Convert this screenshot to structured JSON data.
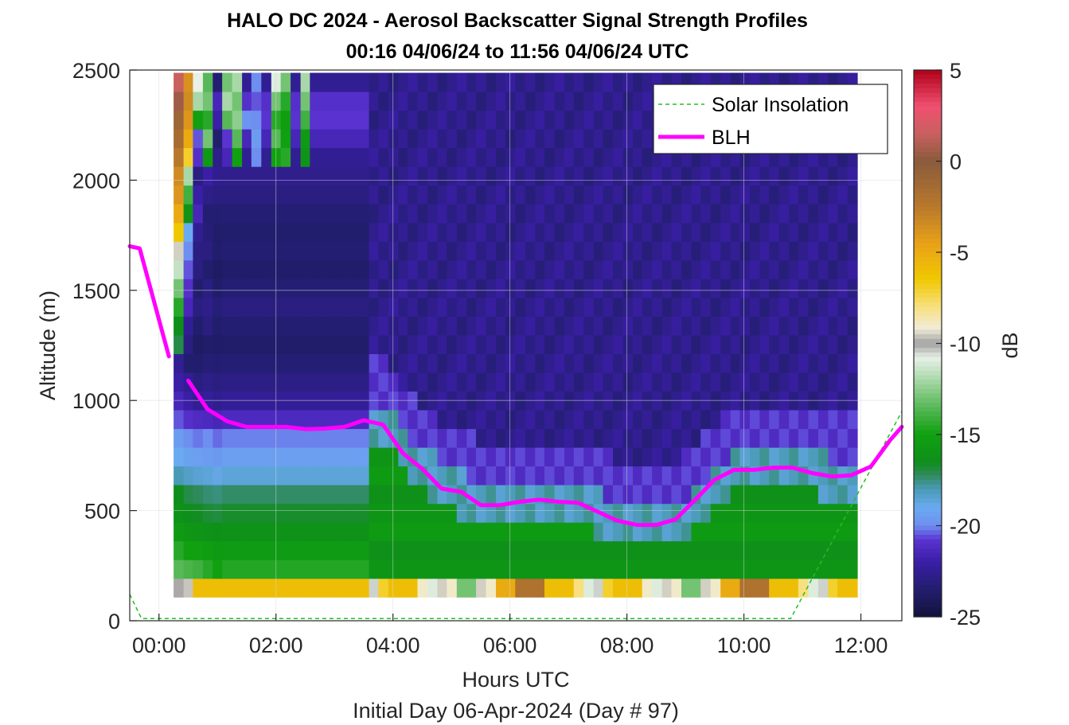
{
  "chart_data": {
    "type": "heatmap",
    "title": "HALO DC 2024 - Aerosol Backscatter Signal Strength Profiles",
    "subtitle": "00:16 04/06/24 to 11:56 04/06/24  UTC",
    "xlabel": "Hours UTC",
    "footer": "Initial Day 06-Apr-2024 (Day # 97)",
    "ylabel": "Altitude (m)",
    "colorbar_label": "dB",
    "xlim_hours": [
      -0.5,
      12.7
    ],
    "ylim": [
      0,
      2500
    ],
    "x_ticks": [
      {
        "hour": 0,
        "label": "00:00"
      },
      {
        "hour": 2,
        "label": "02:00"
      },
      {
        "hour": 4,
        "label": "04:00"
      },
      {
        "hour": 6,
        "label": "06:00"
      },
      {
        "hour": 8,
        "label": "08:00"
      },
      {
        "hour": 10,
        "label": "10:00"
      },
      {
        "hour": 12,
        "label": "12:00"
      }
    ],
    "y_ticks": [
      {
        "value": 0,
        "label": "0"
      },
      {
        "value": 500,
        "label": "500"
      },
      {
        "value": 1000,
        "label": "1000"
      },
      {
        "value": 1500,
        "label": "1500"
      },
      {
        "value": 2000,
        "label": "2000"
      },
      {
        "value": 2500,
        "label": "2500"
      }
    ],
    "colorbar_range": [
      -25,
      5
    ],
    "colorbar_ticks": [
      {
        "value": 5,
        "label": "5"
      },
      {
        "value": 0,
        "label": "0"
      },
      {
        "value": -5,
        "label": "-5"
      },
      {
        "value": -10,
        "label": "-10"
      },
      {
        "value": -15,
        "label": "-15"
      },
      {
        "value": -20,
        "label": "-20"
      },
      {
        "value": -25,
        "label": "-25"
      }
    ],
    "colormap_stops": [
      {
        "value": -25,
        "color": "#14123c"
      },
      {
        "value": -23.5,
        "color": "#221e6e"
      },
      {
        "value": -22,
        "color": "#3a1ea6"
      },
      {
        "value": -20.8,
        "color": "#5a32d0"
      },
      {
        "value": -20,
        "color": "#6e8ef0"
      },
      {
        "value": -19,
        "color": "#6aaaf0"
      },
      {
        "value": -18,
        "color": "#4a9ab6"
      },
      {
        "value": -17.2,
        "color": "#2e8a5a"
      },
      {
        "value": -16.5,
        "color": "#0e8e1a"
      },
      {
        "value": -15,
        "color": "#10a010"
      },
      {
        "value": -13.5,
        "color": "#58b858"
      },
      {
        "value": -12,
        "color": "#a8d8a8"
      },
      {
        "value": -10.8,
        "color": "#e8f0e8"
      },
      {
        "value": -10,
        "color": "#a0a0a0"
      },
      {
        "value": -9.2,
        "color": "#f0ecd8"
      },
      {
        "value": -8,
        "color": "#f8e080"
      },
      {
        "value": -6.5,
        "color": "#f0c800"
      },
      {
        "value": -4.5,
        "color": "#e8a018"
      },
      {
        "value": -2.5,
        "color": "#b8782c"
      },
      {
        "value": 0,
        "color": "#8a5a3c"
      },
      {
        "value": 1.5,
        "color": "#c86060"
      },
      {
        "value": 3,
        "color": "#f05070"
      },
      {
        "value": 5,
        "color": "#b00018"
      }
    ],
    "bin_width_hours": 0.167,
    "altitude_bins": [
      130,
      215,
      300,
      385,
      470,
      555,
      640,
      725,
      810,
      895,
      980,
      1065,
      1150,
      1235,
      1320,
      1405,
      1490,
      1575,
      1660,
      1745,
      1830,
      1915,
      2000,
      2085,
      2170,
      2255,
      2340,
      2425
    ],
    "signal_columns": [
      {
        "hour": 0.25,
        "db": [
          -9.9,
          -13.5,
          -14.5,
          -15.5,
          -16.2,
          -16.5,
          -18.0,
          -19.0,
          -19.5,
          -20.5,
          -21.5,
          -22.0,
          -22.5,
          -17.0,
          -16.5,
          -14.5,
          -13.0,
          -11.5,
          -9.5,
          -6.5,
          -5.0,
          -4.0,
          -3.5,
          -2.5,
          -1.5,
          -1.0,
          0.5,
          1.5
        ]
      },
      {
        "hour": 0.42,
        "db": [
          -9.6,
          -13.8,
          -15.0,
          -15.8,
          -16.5,
          -17.0,
          -18.3,
          -19.3,
          -20.0,
          -21.0,
          -22.0,
          -22.5,
          -23.5,
          -23.0,
          -22.5,
          -21.5,
          -21.0,
          -20.5,
          -20.0,
          -19.0,
          -16.0,
          -14.0,
          -12.0,
          -7.0,
          -5.0,
          -4.0,
          -3.5,
          -3.8
        ]
      },
      {
        "hour": 0.58,
        "db": [
          -6.0,
          -14.0,
          -15.0,
          -16.0,
          -16.6,
          -17.2,
          -18.5,
          -19.4,
          -20.2,
          -21.2,
          -22.5,
          -23.0,
          -23.5,
          -23.8,
          -23.5,
          -23.0,
          -23.5,
          -23.0,
          -23.0,
          -22.5,
          -21.5,
          -22.0,
          -23.0,
          -21.0,
          -20.5,
          -15.0,
          -12.0,
          -10.8
        ]
      },
      {
        "hour": 0.75,
        "db": [
          -6.0,
          -14.5,
          -15.2,
          -16.2,
          -16.8,
          -17.4,
          -18.6,
          -19.5,
          -20.0,
          -21.3,
          -22.3,
          -22.8,
          -23.3,
          -23.6,
          -23.0,
          -22.8,
          -23.0,
          -23.5,
          -23.0,
          -23.2,
          -23.4,
          -22.8,
          -22.0,
          -15.5,
          -13.0,
          -14.5,
          -13.0,
          -13.5
        ]
      },
      {
        "hour": 0.92,
        "db": [
          -6.0,
          -15.0,
          -15.5,
          -16.3,
          -16.9,
          -17.5,
          -18.8,
          -19.6,
          -20.3,
          -21.5,
          -22.6,
          -23.0,
          -23.4,
          -23.7,
          -23.5,
          -23.2,
          -23.6,
          -23.8,
          -23.5,
          -23.6,
          -23.4,
          -23.0,
          -22.6,
          -22.8,
          -23.5,
          -22.0,
          -21.5,
          -23.4
        ]
      },
      {
        "hour": 1.08,
        "db": [
          -6.0,
          -14.6,
          -15.4,
          -16.2,
          -16.7,
          -17.3,
          -18.6,
          -19.4,
          -20.1,
          -21.3,
          -22.4,
          -22.9,
          -23.3,
          -23.6,
          -23.4,
          -23.0,
          -23.3,
          -23.6,
          -23.4,
          -23.5,
          -23.3,
          -23.0,
          -22.7,
          -21.5,
          -20.8,
          -13.5,
          -12.0,
          -13.0
        ]
      },
      {
        "hour": 1.25,
        "db": [
          -6.0,
          -14.6,
          -15.4,
          -16.2,
          -16.7,
          -17.3,
          -18.6,
          -19.4,
          -20.1,
          -21.3,
          -22.4,
          -22.9,
          -23.3,
          -23.6,
          -23.4,
          -23.0,
          -23.3,
          -23.6,
          -23.4,
          -23.5,
          -23.3,
          -23.0,
          -22.7,
          -15.0,
          -13.5,
          -12.5,
          -13.0,
          -12.0
        ]
      },
      {
        "hour": 1.42,
        "db": [
          -6.0,
          -14.6,
          -15.4,
          -16.2,
          -16.7,
          -17.3,
          -18.6,
          -19.4,
          -20.1,
          -21.3,
          -22.4,
          -22.9,
          -23.3,
          -23.6,
          -23.4,
          -23.0,
          -23.3,
          -23.6,
          -23.4,
          -23.5,
          -23.3,
          -23.0,
          -22.7,
          -22.5,
          -21.5,
          -19.8,
          -21.0,
          -22.5
        ]
      },
      {
        "hour": 1.58,
        "db": [
          -6.0,
          -14.6,
          -15.4,
          -16.2,
          -16.7,
          -17.3,
          -18.6,
          -19.4,
          -20.1,
          -21.3,
          -22.4,
          -22.9,
          -23.3,
          -23.6,
          -23.4,
          -23.0,
          -23.3,
          -23.6,
          -23.4,
          -23.5,
          -23.3,
          -23.0,
          -22.7,
          -20.0,
          -19.5,
          -20.0,
          -20.5,
          -20.0
        ]
      },
      {
        "hour": 1.75,
        "db": [
          -6.0,
          -14.6,
          -15.4,
          -16.2,
          -16.7,
          -17.3,
          -18.6,
          -19.4,
          -20.1,
          -21.3,
          -22.4,
          -22.9,
          -23.3,
          -23.6,
          -23.4,
          -23.0,
          -23.3,
          -23.6,
          -23.4,
          -23.5,
          -23.3,
          -23.0,
          -22.7,
          -22.5,
          -21.5,
          -20.8,
          -21.0,
          -22.5
        ]
      },
      {
        "hour": 1.92,
        "db": [
          -6.0,
          -14.6,
          -15.4,
          -16.2,
          -16.7,
          -17.3,
          -18.6,
          -19.4,
          -20.1,
          -21.3,
          -22.4,
          -22.9,
          -23.3,
          -23.6,
          -23.4,
          -23.0,
          -23.3,
          -23.6,
          -23.4,
          -23.5,
          -23.3,
          -23.0,
          -22.7,
          -15.0,
          -13.5,
          -14.5,
          -13.0,
          -11.0
        ]
      },
      {
        "hour": 2.08,
        "db": [
          -6.0,
          -14.6,
          -15.4,
          -16.2,
          -16.7,
          -17.3,
          -18.6,
          -19.4,
          -20.1,
          -21.3,
          -22.4,
          -22.9,
          -23.3,
          -23.6,
          -23.4,
          -23.0,
          -23.3,
          -23.6,
          -23.4,
          -23.5,
          -23.3,
          -23.0,
          -22.7,
          -14.5,
          -15.0,
          -15.2,
          -14.5,
          -13.0
        ]
      },
      {
        "hour": 2.25,
        "db": [
          -6.0,
          -14.6,
          -15.4,
          -16.2,
          -16.7,
          -17.3,
          -18.6,
          -19.4,
          -20.1,
          -21.3,
          -22.4,
          -22.9,
          -23.3,
          -23.6,
          -23.4,
          -23.0,
          -23.3,
          -23.6,
          -23.4,
          -23.5,
          -23.3,
          -23.0,
          -22.7,
          -22.5,
          -21.5,
          -20.8,
          -21.0,
          -22.5
        ]
      },
      {
        "hour": 2.42,
        "db": [
          -6.0,
          -14.6,
          -15.4,
          -16.2,
          -16.7,
          -17.3,
          -18.6,
          -19.4,
          -20.1,
          -21.3,
          -22.4,
          -22.9,
          -23.3,
          -23.6,
          -23.4,
          -23.0,
          -23.3,
          -23.6,
          -23.4,
          -23.5,
          -23.3,
          -23.0,
          -22.7,
          -16.0,
          -15.5,
          -14.0,
          -13.0,
          -12.0
        ]
      },
      {
        "hour": 2.58,
        "db": [
          -6.0,
          -14.6,
          -15.4,
          -16.2,
          -16.7,
          -17.3,
          -18.6,
          -19.4,
          -20.1,
          -21.3,
          -22.4,
          -22.9,
          -23.3,
          -23.6,
          -23.4,
          -23.0,
          -23.3,
          -23.6,
          -23.4,
          -23.5,
          -23.3,
          -23.0,
          -22.7,
          -22.5,
          -21.5,
          -20.8,
          -21.0,
          -22.5
        ]
      },
      {
        "hour": 2.75,
        "db": [
          -6.0,
          -14.6,
          -15.4,
          -16.2,
          -16.7,
          -17.3,
          -18.6,
          -19.4,
          -20.1,
          -21.3,
          -22.4,
          -22.9,
          -23.3,
          -23.6,
          -23.4,
          -23.0,
          -23.3,
          -23.6,
          -23.4,
          -23.5,
          -23.3,
          -23.0,
          -22.7,
          -22.5,
          -21.5,
          -20.8,
          -21.0,
          -22.5
        ]
      },
      {
        "hour": 2.92,
        "db": [
          -6.0,
          -14.6,
          -15.4,
          -16.2,
          -16.7,
          -17.3,
          -18.6,
          -19.4,
          -20.1,
          -21.3,
          -22.4,
          -22.9,
          -23.3,
          -23.6,
          -23.4,
          -23.0,
          -23.3,
          -23.6,
          -23.4,
          -23.5,
          -23.3,
          -23.0,
          -22.7,
          -22.5,
          -21.5,
          -20.8,
          -21.0,
          -22.5
        ]
      },
      {
        "hour": 3.08,
        "db": [
          -6.0,
          -14.6,
          -15.4,
          -16.2,
          -16.7,
          -17.3,
          -18.6,
          -19.4,
          -20.1,
          -21.3,
          -22.4,
          -22.9,
          -23.3,
          -23.6,
          -23.4,
          -23.0,
          -23.3,
          -23.6,
          -23.4,
          -23.5,
          -23.3,
          -23.0,
          -22.7,
          -22.5,
          -21.5,
          -20.8,
          -21.0,
          -22.5
        ]
      },
      {
        "hour": 3.25,
        "db": [
          -6.0,
          -14.6,
          -15.4,
          -16.2,
          -16.7,
          -17.3,
          -18.6,
          -19.4,
          -20.1,
          -21.3,
          -22.4,
          -22.9,
          -23.3,
          -23.6,
          -23.4,
          -23.0,
          -23.3,
          -23.6,
          -23.4,
          -23.5,
          -23.3,
          -23.0,
          -22.7,
          -22.5,
          -21.5,
          -20.8,
          -21.0,
          -22.5
        ]
      },
      {
        "hour": 3.42,
        "db": [
          -6.0,
          -14.6,
          -15.4,
          -16.2,
          -16.7,
          -17.3,
          -18.6,
          -19.4,
          -20.1,
          -21.3,
          -22.4,
          -22.9,
          -23.3,
          -23.6,
          -23.4,
          -23.0,
          -23.3,
          -23.6,
          -23.4,
          -23.5,
          -23.3,
          -23.0,
          -22.7,
          -22.5,
          -21.5,
          -20.8,
          -21.0,
          -22.5
        ]
      }
    ],
    "column_pattern_note": "",
    "blh": {
      "name": "BLH",
      "color": "#ff00ff",
      "segments": [
        [
          [
            -0.5,
            1700
          ],
          [
            -0.33,
            1690
          ],
          [
            0.17,
            1200
          ]
        ],
        [
          [
            0.5,
            1090
          ],
          [
            0.83,
            960
          ],
          [
            1.17,
            905
          ],
          [
            1.5,
            880
          ],
          [
            1.83,
            880
          ],
          [
            2.17,
            880
          ],
          [
            2.5,
            870
          ],
          [
            2.83,
            872
          ],
          [
            3.17,
            880
          ],
          [
            3.5,
            910
          ],
          [
            3.83,
            890
          ],
          [
            4.17,
            760
          ],
          [
            4.5,
            690
          ],
          [
            4.83,
            600
          ],
          [
            5.17,
            585
          ],
          [
            5.5,
            525
          ],
          [
            5.83,
            525
          ],
          [
            6.17,
            540
          ],
          [
            6.5,
            550
          ],
          [
            6.83,
            540
          ],
          [
            7.17,
            535
          ],
          [
            7.5,
            495
          ],
          [
            7.83,
            455
          ],
          [
            8.17,
            435
          ],
          [
            8.5,
            435
          ],
          [
            8.83,
            460
          ],
          [
            9.17,
            550
          ],
          [
            9.5,
            640
          ],
          [
            9.83,
            685
          ],
          [
            10.17,
            685
          ],
          [
            10.5,
            695
          ],
          [
            10.83,
            695
          ],
          [
            11.17,
            670
          ],
          [
            11.5,
            655
          ],
          [
            11.83,
            660
          ],
          [
            12.17,
            700
          ],
          [
            12.5,
            820
          ],
          [
            12.7,
            880
          ]
        ]
      ]
    },
    "solar_insolation": {
      "name": "Solar Insolation",
      "color": "#22c022",
      "points": [
        [
          -0.5,
          120
        ],
        [
          -0.3,
          10
        ],
        [
          10.8,
          10
        ],
        [
          12.7,
          950
        ]
      ]
    },
    "legend": {
      "placement": "top-right",
      "entries": [
        "Solar Insolation",
        "BLH"
      ]
    }
  }
}
